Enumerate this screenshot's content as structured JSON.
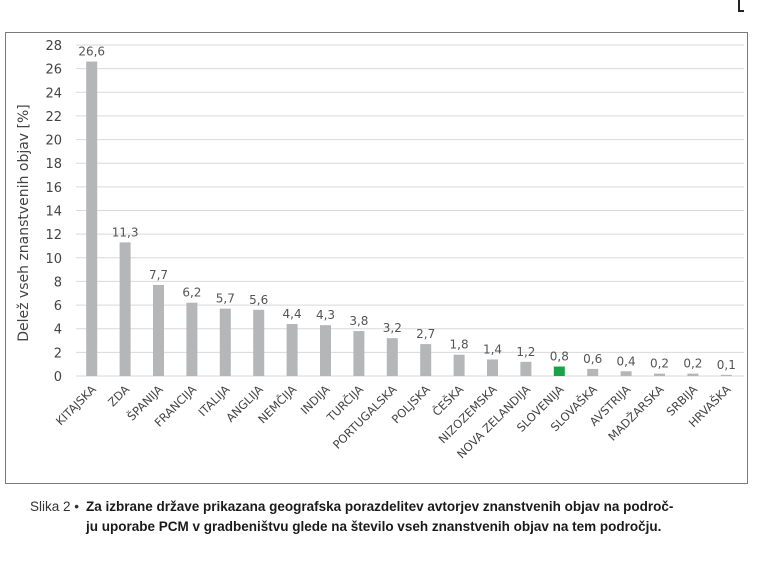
{
  "chart_data": {
    "type": "bar",
    "ylabel": "Delež vseh znanstvenih objav [%]",
    "ylim": [
      0,
      28
    ],
    "yticks": [
      0,
      2,
      4,
      6,
      8,
      10,
      12,
      14,
      16,
      18,
      20,
      22,
      24,
      26,
      28
    ],
    "grid": true,
    "categories": [
      "KITAJSKA",
      "ZDA",
      "ŠPANIJA",
      "FRANCIJA",
      "ITALIJA",
      "ANGLIJA",
      "NEMČIJA",
      "INDIJA",
      "TURČIJA",
      "PORTUGALSKA",
      "POLJSKA",
      "ČEŠKA",
      "NIZOZEMSKA",
      "NOVA ZELANDIJA",
      "SLOVENIJA",
      "SLOVAŠKA",
      "AVSTRIJA",
      "MADŽARSKA",
      "SRBIJA",
      "HRVAŠKA"
    ],
    "values": [
      26.6,
      11.3,
      7.7,
      6.2,
      5.7,
      5.6,
      4.4,
      4.3,
      3.8,
      3.2,
      2.7,
      1.8,
      1.4,
      1.2,
      0.8,
      0.6,
      0.4,
      0.2,
      0.2,
      0.1
    ],
    "value_labels": [
      "26,6",
      "11,3",
      "7,7",
      "6,2",
      "5,7",
      "5,6",
      "4,4",
      "4,3",
      "3,8",
      "3,2",
      "2,7",
      "1,8",
      "1,4",
      "1,2",
      "0,8",
      "0,6",
      "0,4",
      "0,2",
      "0,2",
      "0,1"
    ],
    "highlight_category": "SLOVENIJA",
    "colors": {
      "bar": "#b5b6b8",
      "highlight": "#1aa24a",
      "grid": "#d9d9d9",
      "text": "#555555"
    }
  },
  "caption": {
    "lead": "Slika 2 •",
    "line1": "Za izbrane države prikazana geografska porazdelitev avtorjev znanstvenih objav na področ-",
    "line2": "ju uporabe PCM v gradbeništvu glede na število vseh znanstvenih objav na tem področju."
  }
}
